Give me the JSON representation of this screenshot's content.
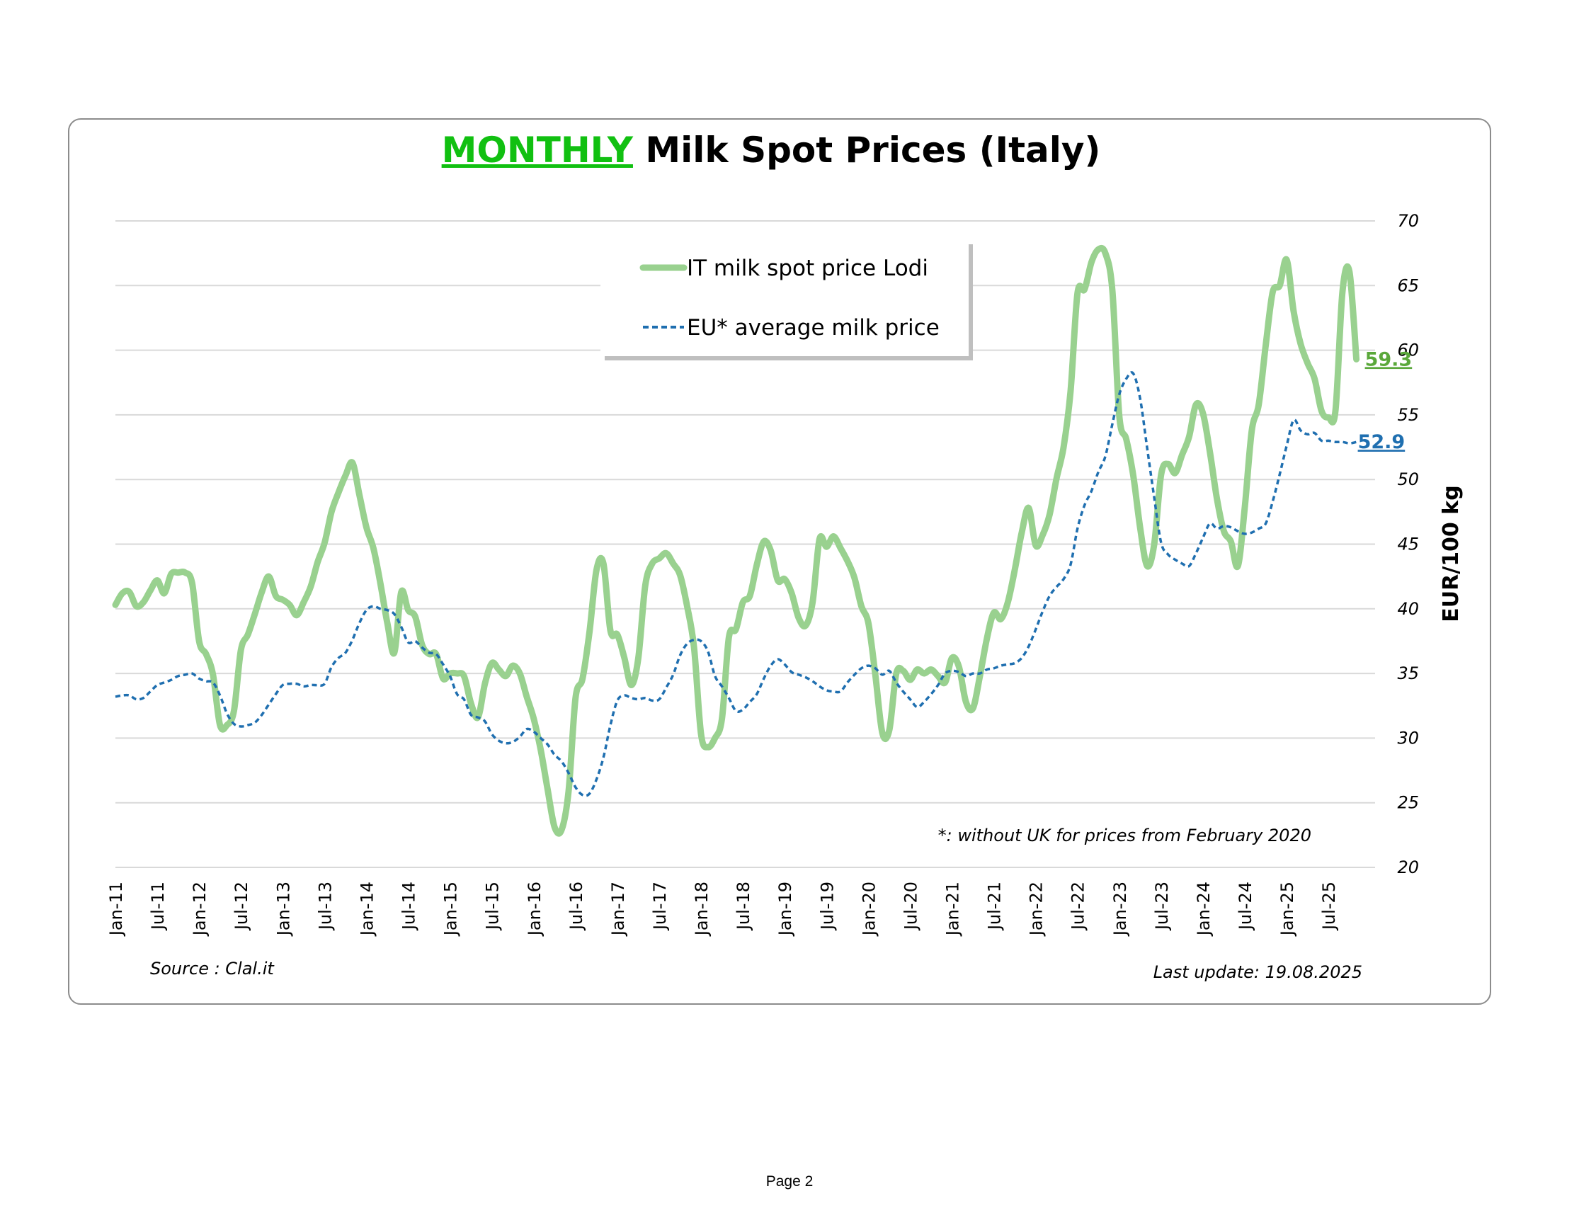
{
  "title": {
    "highlight": "MONTHLY",
    "rest": " Milk Spot Prices (Italy)",
    "highlight_color": "#11c011"
  },
  "page": {
    "number_label": "Page 2"
  },
  "footer": {
    "source": "Source : Clal.it",
    "last_update": "Last update: 19.08.2025"
  },
  "note": "*: without UK for prices from February 2020",
  "colors": {
    "it_series": "#99d18f",
    "eu_series": "#1f6fb0",
    "grid": "#d9d9d9",
    "it_label": "#5aa83a",
    "eu_label": "#1f6fb0"
  },
  "chart_data": {
    "type": "line",
    "ylabel": "EUR/100 kg",
    "ylim": [
      20,
      70
    ],
    "y_ticks": [
      "70",
      "65",
      "60",
      "55",
      "50",
      "45",
      "40",
      "35",
      "30",
      "25",
      "20"
    ],
    "grid": true,
    "legend_placement": "top-center",
    "x_start": "Jan-11",
    "x_tick_labels": [
      "Jan-11",
      "Jul-11",
      "Jan-12",
      "Jul-12",
      "Jan-13",
      "Jul-13",
      "Jan-14",
      "Jul-14",
      "Jan-15",
      "Jul-15",
      "Jan-16",
      "Jul-16",
      "Jan-17",
      "Jul-17",
      "Jan-18",
      "Jul-18",
      "Jan-19",
      "Jul-19",
      "Jan-20",
      "Jul-20",
      "Jan-21",
      "Jul-21",
      "Jan-22",
      "Jul-22",
      "Jan-23",
      "Jul-23",
      "Jan-24",
      "Jul-24",
      "Jan-25",
      "Jul-25"
    ],
    "series": [
      {
        "name": "IT milk spot price Lodi",
        "end_label": "59.3",
        "values": [
          40.3,
          41.2,
          41.3,
          40.2,
          40.5,
          41.4,
          42.2,
          41.2,
          42.7,
          42.8,
          42.8,
          42.0,
          37.5,
          36.5,
          34.9,
          31.0,
          31.0,
          32.1,
          36.8,
          38.0,
          39.6,
          41.3,
          42.5,
          41.0,
          40.7,
          40.3,
          39.5,
          40.5,
          41.7,
          43.6,
          45.1,
          47.5,
          49.0,
          50.3,
          51.3,
          48.8,
          46.3,
          44.7,
          42.0,
          38.9,
          36.6,
          41.3,
          39.9,
          39.4,
          37.2,
          36.5,
          36.5,
          34.6,
          35.0,
          35.0,
          34.8,
          32.7,
          31.6,
          34.2,
          35.8,
          35.3,
          34.8,
          35.6,
          35.0,
          33.2,
          31.5,
          29.1,
          26.0,
          23.1,
          22.9,
          25.9,
          33.1,
          34.6,
          38.2,
          43.0,
          43.5,
          38.3,
          38.0,
          36.2,
          34.1,
          36.2,
          41.8,
          43.5,
          43.9,
          44.3,
          43.5,
          42.6,
          40.2,
          37.0,
          30.3,
          29.3,
          30.0,
          31.5,
          37.8,
          38.4,
          40.5,
          41.0,
          43.4,
          45.2,
          44.5,
          42.2,
          42.3,
          41.2,
          39.3,
          38.7,
          40.5,
          45.4,
          44.8,
          45.6,
          44.7,
          43.7,
          42.4,
          40.2,
          38.9,
          34.9,
          30.4,
          30.6,
          35.0,
          35.2,
          34.5,
          35.3,
          35.0,
          35.3,
          34.8,
          34.3,
          36.2,
          35.5,
          32.8,
          32.3,
          34.8,
          37.7,
          39.7,
          39.2,
          40.5,
          43.0,
          45.9,
          47.8,
          44.9,
          45.7,
          47.3,
          50.1,
          52.5,
          56.8,
          64.4,
          64.7,
          66.8,
          67.8,
          67.5,
          64.6,
          54.9,
          53.1,
          50.3,
          46.2,
          43.3,
          45.0,
          50.4,
          51.2,
          50.5,
          51.9,
          53.3,
          55.8,
          55.1,
          52.1,
          48.5,
          46.0,
          45.2,
          43.3,
          47.9,
          53.8,
          55.8,
          60.4,
          64.5,
          65.0,
          67.0,
          63.0,
          60.5,
          59.0,
          57.8,
          55.3,
          54.8,
          55.3,
          64.5,
          66.1,
          59.3
        ]
      },
      {
        "name": "EU* average milk price",
        "end_label": "52.9",
        "values": [
          33.2,
          33.3,
          33.3,
          33.0,
          33.1,
          33.6,
          34.1,
          34.3,
          34.5,
          34.8,
          34.9,
          35.0,
          34.6,
          34.4,
          34.3,
          33.3,
          31.9,
          31.1,
          30.9,
          31.0,
          31.2,
          31.8,
          32.6,
          33.4,
          34.1,
          34.2,
          34.2,
          34.0,
          34.1,
          34.1,
          34.2,
          35.5,
          36.2,
          36.6,
          37.6,
          38.9,
          39.9,
          40.2,
          40.0,
          39.9,
          39.6,
          38.6,
          37.4,
          37.5,
          37.0,
          36.6,
          36.5,
          35.7,
          34.8,
          33.4,
          33.0,
          31.8,
          31.6,
          31.3,
          30.3,
          29.8,
          29.6,
          29.7,
          30.1,
          30.7,
          30.5,
          30.0,
          29.5,
          28.7,
          28.2,
          27.3,
          26.2,
          25.6,
          25.7,
          26.8,
          28.5,
          31.0,
          32.9,
          33.3,
          33.1,
          33.0,
          33.1,
          32.9,
          33.0,
          33.9,
          34.9,
          36.4,
          37.3,
          37.6,
          37.5,
          36.7,
          34.8,
          34.0,
          33.1,
          32.1,
          32.2,
          32.8,
          33.4,
          34.6,
          35.6,
          36.1,
          35.7,
          35.1,
          34.9,
          34.7,
          34.4,
          34.0,
          33.7,
          33.6,
          33.6,
          34.3,
          34.9,
          35.4,
          35.6,
          35.4,
          34.9,
          35.2,
          34.3,
          33.6,
          33.0,
          32.4,
          32.8,
          33.4,
          34.1,
          35.0,
          35.2,
          35.1,
          34.8,
          35.0,
          35.0,
          35.3,
          35.4,
          35.6,
          35.7,
          35.8,
          36.2,
          37.1,
          38.4,
          39.8,
          41.0,
          41.7,
          42.3,
          43.4,
          46.2,
          48.0,
          49.1,
          50.6,
          51.8,
          54.3,
          56.6,
          57.8,
          58.2,
          56.2,
          52.4,
          48.6,
          45.1,
          44.2,
          43.8,
          43.5,
          43.3,
          44.3,
          45.5,
          46.6,
          46.2,
          46.4,
          46.3,
          46.0,
          45.8,
          45.9,
          46.2,
          46.6,
          48.3,
          50.4,
          52.6,
          54.6,
          53.8,
          53.5,
          53.6,
          53.0,
          53.0,
          52.9,
          52.9,
          52.8,
          52.9
        ]
      }
    ]
  }
}
